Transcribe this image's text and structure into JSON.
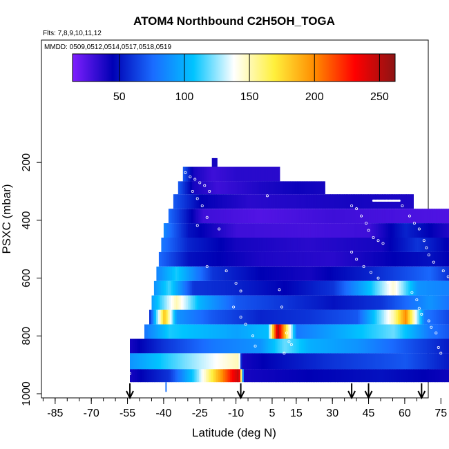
{
  "chart_data": {
    "type": "heatmap",
    "title": "ATOM4 Northbound C2H5OH_TOGA",
    "subtitle_flights": "Flts: 7,8,9,10,11,12",
    "subtitle_dates": "MMDD: 0509,0512,0514,0517,0518,0519",
    "xlabel": "Latitude (deg N)",
    "ylabel": "PSXC (mbar)",
    "xlim": [
      -90,
      90
    ],
    "ylim": [
      1000,
      0
    ],
    "x_tick_labels": [
      "-85",
      "-70",
      "-55",
      "-40",
      "-25",
      "-10",
      "5",
      "15",
      "30",
      "45",
      "60",
      "75"
    ],
    "x_tick_values": [
      -85,
      -70,
      -55,
      -40,
      -25,
      -10,
      5,
      15,
      30,
      45,
      60,
      75
    ],
    "y_tick_labels": [
      "200",
      "400",
      "600",
      "800",
      "1000"
    ],
    "y_tick_values": [
      200,
      400,
      600,
      800,
      1000
    ],
    "colorbar": {
      "min": 14,
      "max": 262,
      "tick_labels": [
        "50",
        "100",
        "150",
        "200",
        "250"
      ],
      "tick_values": [
        50,
        100,
        150,
        200,
        250
      ],
      "colors": [
        "#7f1fff",
        "#0000b4",
        "#1a6cff",
        "#00c4ff",
        "#ffffff",
        "#fff03c",
        "#ff8c00",
        "#ff0000",
        "#8c1414"
      ]
    },
    "flight_markers_lat": [
      -54,
      -8,
      38,
      45,
      67
    ],
    "layers": [
      {
        "p_top": 185,
        "p_bot": 215,
        "lat_start": -20,
        "lat_end": -19,
        "segments": [
          [
            -20,
            40
          ]
        ]
      },
      {
        "p_top": 215,
        "p_bot": 265,
        "lat_start": -32,
        "lat_end": 7,
        "segments": [
          [
            -32,
            70
          ],
          [
            -28,
            40
          ],
          [
            -20,
            30
          ],
          [
            -10,
            35
          ],
          [
            7,
            35
          ]
        ]
      },
      {
        "p_top": 265,
        "p_bot": 310,
        "lat_start": -34,
        "lat_end": 26,
        "segments": [
          [
            -34,
            70
          ],
          [
            -28,
            40
          ],
          [
            -18,
            30
          ],
          [
            0,
            38
          ],
          [
            15,
            42
          ],
          [
            26,
            40
          ]
        ]
      },
      {
        "p_top": 310,
        "p_bot": 360,
        "lat_start": -36,
        "lat_end": 62,
        "segments": [
          [
            -36,
            70
          ],
          [
            -25,
            45
          ],
          [
            -5,
            35
          ],
          [
            20,
            38
          ],
          [
            40,
            40
          ],
          [
            62,
            38
          ]
        ]
      },
      {
        "p_top": 360,
        "p_bot": 410,
        "lat_start": -38,
        "lat_end": 85,
        "segments": [
          [
            -38,
            75
          ],
          [
            -24,
            30
          ],
          [
            0,
            25
          ],
          [
            30,
            30
          ],
          [
            50,
            28
          ],
          [
            85,
            25
          ]
        ]
      },
      {
        "p_top": 410,
        "p_bot": 460,
        "lat_start": -40,
        "lat_end": 85,
        "segments": [
          [
            -40,
            85
          ],
          [
            -30,
            50
          ],
          [
            -10,
            30
          ],
          [
            20,
            28
          ],
          [
            45,
            30
          ],
          [
            60,
            55
          ],
          [
            85,
            30
          ]
        ]
      },
      {
        "p_top": 460,
        "p_bot": 510,
        "lat_start": -41,
        "lat_end": 85,
        "segments": [
          [
            -41,
            80
          ],
          [
            -30,
            55
          ],
          [
            -10,
            40
          ],
          [
            20,
            35
          ],
          [
            50,
            40
          ],
          [
            65,
            60
          ],
          [
            85,
            35
          ]
        ]
      },
      {
        "p_top": 510,
        "p_bot": 560,
        "lat_start": -42,
        "lat_end": 85,
        "segments": [
          [
            -42,
            75
          ],
          [
            -30,
            50
          ],
          [
            0,
            38
          ],
          [
            30,
            35
          ],
          [
            55,
            45
          ],
          [
            70,
            50
          ],
          [
            85,
            40
          ]
        ]
      },
      {
        "p_top": 560,
        "p_bot": 610,
        "lat_start": -43,
        "lat_end": 85,
        "segments": [
          [
            -43,
            85
          ],
          [
            -35,
            110
          ],
          [
            -20,
            60
          ],
          [
            0,
            45
          ],
          [
            20,
            40
          ],
          [
            45,
            55
          ],
          [
            70,
            75
          ],
          [
            85,
            45
          ]
        ]
      },
      {
        "p_top": 610,
        "p_bot": 660,
        "lat_start": -44,
        "lat_end": 84,
        "segments": [
          [
            -44,
            90
          ],
          [
            -38,
            115
          ],
          [
            -28,
            60
          ],
          [
            -10,
            55
          ],
          [
            10,
            45
          ],
          [
            30,
            60
          ],
          [
            45,
            105
          ],
          [
            55,
            145
          ],
          [
            65,
            90
          ],
          [
            84,
            80
          ]
        ]
      },
      {
        "p_top": 660,
        "p_bot": 710,
        "lat_start": -45,
        "lat_end": 84,
        "segments": [
          [
            -45,
            95
          ],
          [
            -35,
            150
          ],
          [
            -25,
            100
          ],
          [
            -10,
            70
          ],
          [
            10,
            60
          ],
          [
            30,
            50
          ],
          [
            50,
            60
          ],
          [
            70,
            90
          ],
          [
            84,
            70
          ]
        ]
      },
      {
        "p_top": 710,
        "p_bot": 760,
        "lat_start": -46,
        "lat_end": 85,
        "segments": [
          [
            -46,
            60
          ],
          [
            -40,
            185
          ],
          [
            -35,
            90
          ],
          [
            -20,
            70
          ],
          [
            0,
            55
          ],
          [
            20,
            60
          ],
          [
            40,
            70
          ],
          [
            55,
            150
          ],
          [
            60,
            200
          ],
          [
            68,
            80
          ],
          [
            85,
            55
          ]
        ]
      },
      {
        "p_top": 760,
        "p_bot": 810,
        "lat_start": -48,
        "lat_end": 85,
        "segments": [
          [
            -48,
            80
          ],
          [
            -38,
            110
          ],
          [
            -10,
            95
          ],
          [
            3,
            105
          ],
          [
            7,
            255
          ],
          [
            11,
            160
          ],
          [
            15,
            80
          ],
          [
            35,
            100
          ],
          [
            55,
            120
          ],
          [
            70,
            80
          ],
          [
            85,
            60
          ]
        ]
      },
      {
        "p_top": 810,
        "p_bot": 860,
        "lat_start": -54,
        "lat_end": 85,
        "segments": [
          [
            -54,
            40
          ],
          [
            -40,
            60
          ],
          [
            -20,
            80
          ],
          [
            0,
            90
          ],
          [
            10,
            120
          ],
          [
            20,
            100
          ],
          [
            40,
            90
          ],
          [
            60,
            70
          ],
          [
            85,
            45
          ]
        ]
      },
      {
        "p_top": 860,
        "p_bot": 915,
        "lat_start": -54,
        "lat_end": 85,
        "segments": [
          [
            -54,
            90
          ],
          [
            -40,
            110
          ],
          [
            -25,
            130
          ],
          [
            -9,
            150
          ],
          [
            -8,
            40
          ],
          [
            10,
            50
          ],
          [
            30,
            60
          ],
          [
            60,
            70
          ],
          [
            85,
            45
          ]
        ]
      },
      {
        "p_top": 915,
        "p_bot": 960,
        "lat_start": -54,
        "lat_end": 85,
        "segments": [
          [
            -54,
            40
          ],
          [
            -38,
            60
          ],
          [
            -28,
            110
          ],
          [
            -20,
            170
          ],
          [
            -12,
            230
          ],
          [
            -9,
            250
          ],
          [
            -7,
            40
          ],
          [
            20,
            45
          ],
          [
            50,
            50
          ],
          [
            85,
            40
          ]
        ]
      }
    ],
    "sample_points": [
      [
        -31,
        235
      ],
      [
        -29,
        250
      ],
      [
        -27,
        258
      ],
      [
        -25,
        270
      ],
      [
        -23,
        280
      ],
      [
        -21,
        300
      ],
      [
        -28,
        300
      ],
      [
        -26,
        325
      ],
      [
        -24,
        350
      ],
      [
        -22,
        390
      ],
      [
        -26,
        418
      ],
      [
        -17,
        430
      ],
      [
        -22,
        560
      ],
      [
        -14,
        575
      ],
      [
        -10,
        618
      ],
      [
        -8,
        645
      ],
      [
        -11,
        700
      ],
      [
        -8,
        735
      ],
      [
        -6,
        760
      ],
      [
        -3,
        800
      ],
      [
        -2,
        835
      ],
      [
        8,
        640
      ],
      [
        9,
        700
      ],
      [
        11,
        790
      ],
      [
        12,
        820
      ],
      [
        13,
        830
      ],
      [
        10,
        860
      ],
      [
        3,
        315
      ],
      [
        38,
        350
      ],
      [
        40,
        360
      ],
      [
        42,
        385
      ],
      [
        44,
        410
      ],
      [
        45,
        435
      ],
      [
        47,
        460
      ],
      [
        49,
        470
      ],
      [
        51,
        480
      ],
      [
        38,
        510
      ],
      [
        40,
        535
      ],
      [
        43,
        560
      ],
      [
        46,
        580
      ],
      [
        49,
        600
      ],
      [
        53,
        615
      ],
      [
        59,
        350
      ],
      [
        62,
        385
      ],
      [
        64,
        410
      ],
      [
        66,
        430
      ],
      [
        68,
        470
      ],
      [
        69,
        495
      ],
      [
        70,
        520
      ],
      [
        72,
        545
      ],
      [
        76,
        575
      ],
      [
        78,
        595
      ],
      [
        79,
        610
      ],
      [
        80,
        640
      ],
      [
        81,
        665
      ],
      [
        82,
        690
      ],
      [
        83,
        710
      ],
      [
        84,
        740
      ],
      [
        63,
        650
      ],
      [
        65,
        675
      ],
      [
        66,
        705
      ],
      [
        67,
        725
      ],
      [
        70,
        748
      ],
      [
        71,
        770
      ],
      [
        73,
        790
      ],
      [
        74,
        840
      ],
      [
        75,
        860
      ],
      [
        -55,
        900
      ],
      [
        -54,
        930
      ]
    ],
    "extra_features": {
      "dotted_row": {
        "p": 332,
        "lat_from": 47,
        "lat_to": 58
      },
      "blue_tick_lat": -39
    }
  }
}
